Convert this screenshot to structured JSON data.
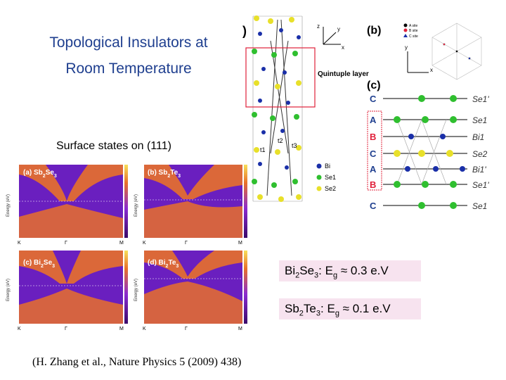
{
  "slide": {
    "title_line1": "Topological Insulators at",
    "title_line2": "Room Temperature",
    "subtitle": "Surface states on (111)",
    "citation": "(H. Zhang et al., Nature Physics 5 (2009) 438)"
  },
  "gaps": [
    {
      "pre": "Bi",
      "sub1": "2",
      "mid": "Se",
      "sub2": "3",
      "post": ":  E",
      "sub3": "g",
      "approx": " ≈ 0.3 e.V"
    },
    {
      "pre": "Sb",
      "sub1": "2",
      "mid": "Te",
      "sub2": "3",
      "post": ":  E",
      "sub3": "g",
      "approx": " ≈ 0.1 e.V"
    }
  ],
  "band_panels": [
    {
      "letter": "(a) Sb",
      "s1": "2",
      "b": "Se",
      "s2": "3"
    },
    {
      "letter": "(b) Sb",
      "s1": "2",
      "b": "Te",
      "s2": "3"
    },
    {
      "letter": "(c) Bi",
      "s1": "2",
      "b": "Se",
      "s2": "3"
    },
    {
      "letter": "(d) Bi",
      "s1": "2",
      "b": "Te",
      "s2": "3"
    }
  ],
  "band_axes": {
    "ylabel": "Energy (eV)",
    "kpoints": [
      "K",
      "Γ",
      "M"
    ]
  },
  "structure": {
    "label_a": ")",
    "label_b": "(b)",
    "label_c": "(c)",
    "quintuple": "Quintuple layer",
    "axis_z": "z",
    "axis_y": "y",
    "axis_x": "x",
    "legend": [
      "Bi",
      "Se1",
      "Se2"
    ],
    "t_labels": [
      "t1",
      "t2",
      "t3"
    ],
    "layer_letters": [
      "C",
      "A",
      "B",
      "C",
      "A",
      "B",
      "C"
    ],
    "layer_names": [
      "Se1'",
      "Se1",
      "Bi1",
      "Se2",
      "Bi1'",
      "Se1'",
      "Se1"
    ],
    "site_legend": [
      "A site",
      "B site",
      "C site"
    ]
  },
  "colors": {
    "title": "#1f3f8f",
    "gap_box": "#f7e3ef",
    "band_bg": "#6a1fbf",
    "band_hot": "#e8702a",
    "bi_atom": "#1a2fa8",
    "se1_atom": "#2fbf2f",
    "se2_atom": "#e8e02a",
    "letter_red": "#e0203a"
  }
}
